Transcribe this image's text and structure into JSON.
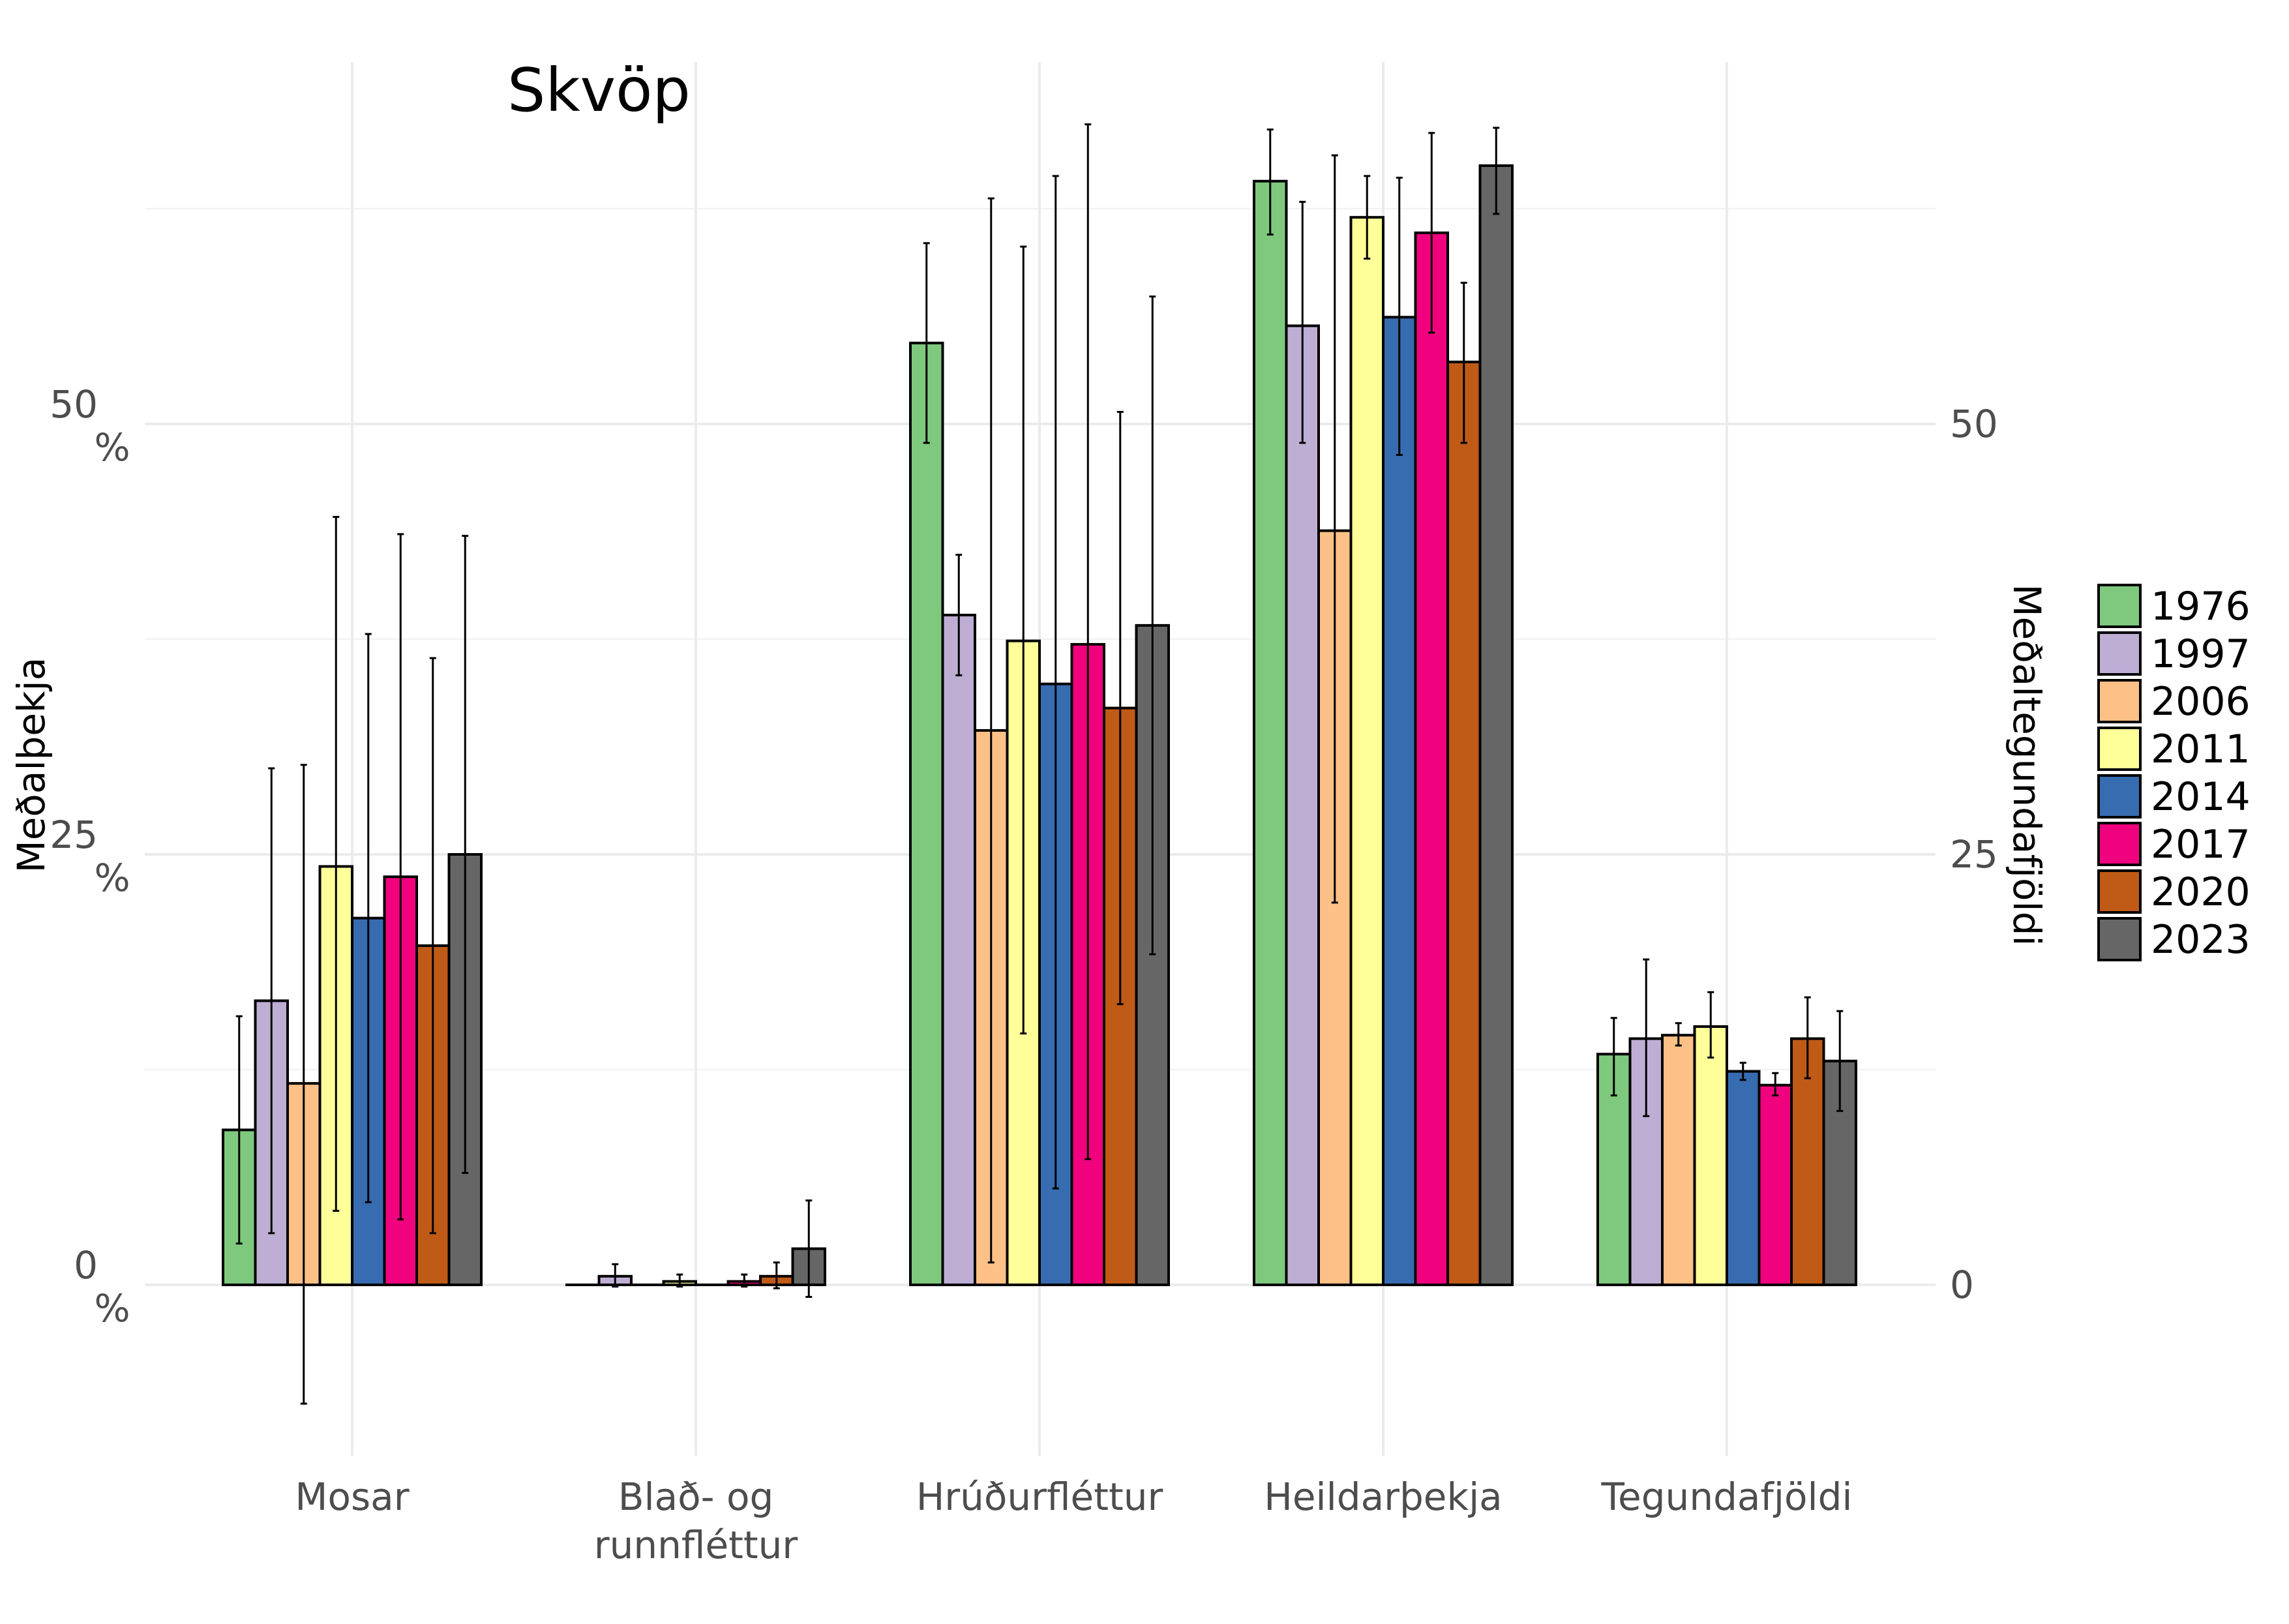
{
  "chart_data": {
    "type": "bar",
    "title": "Skvöp",
    "ylabel": "Meðalþekja",
    "ylabel_right": "Meðaltegundafjöldi",
    "categories": [
      "Mosar",
      "Blað- og runnfléttur",
      "Hrúðurfléttur",
      "Heildarþekja",
      "Tegundafjöldi"
    ],
    "category_lines": [
      [
        "Mosar"
      ],
      [
        "Blað- og",
        "runnfléttur"
      ],
      [
        "Hrúðurfléttur"
      ],
      [
        "Heildarþekja"
      ],
      [
        "Tegundafjöldi"
      ]
    ],
    "ylim": [
      -9.5,
      71
    ],
    "y_ticks_left": [
      {
        "value": 0,
        "line1": "0",
        "line2": "%"
      },
      {
        "value": 25,
        "line1": "25",
        "line2": "%"
      },
      {
        "value": 50,
        "line1": "50",
        "line2": "%"
      }
    ],
    "y_ticks_right": [
      {
        "value": 0,
        "label": "0"
      },
      {
        "value": 25,
        "label": "25"
      },
      {
        "value": 50,
        "label": "50"
      }
    ],
    "grid": true,
    "legend": "right",
    "series": [
      {
        "name": "1976",
        "color": "#7FC97F",
        "values": [
          9.0,
          0.0,
          54.7,
          64.1,
          13.4
        ],
        "errors": [
          [
            2.4,
            15.6
          ],
          [
            0.0,
            0.0
          ],
          [
            48.9,
            60.5
          ],
          [
            61.0,
            67.1
          ],
          [
            11.0,
            15.5
          ]
        ]
      },
      {
        "name": "1997",
        "color": "#BEAED4",
        "values": [
          16.5,
          0.5,
          38.9,
          55.7,
          14.3
        ],
        "errors": [
          [
            3.0,
            30.0
          ],
          [
            -0.1,
            1.2
          ],
          [
            35.4,
            42.4
          ],
          [
            48.9,
            62.9
          ],
          [
            9.8,
            18.9
          ]
        ]
      },
      {
        "name": "2006",
        "color": "#FDC086",
        "values": [
          11.7,
          0.0,
          32.2,
          43.8,
          14.5
        ],
        "errors": [
          [
            -6.9,
            30.2
          ],
          [
            0.0,
            0.0
          ],
          [
            1.3,
            63.1
          ],
          [
            22.2,
            65.6
          ],
          [
            13.9,
            15.2
          ]
        ]
      },
      {
        "name": "2011",
        "color": "#FFFF99",
        "values": [
          24.3,
          0.2,
          37.4,
          62.0,
          15.0
        ],
        "errors": [
          [
            4.3,
            44.6
          ],
          [
            -0.1,
            0.6
          ],
          [
            14.6,
            60.3
          ],
          [
            59.6,
            64.4
          ],
          [
            13.2,
            17.0
          ]
        ]
      },
      {
        "name": "2014",
        "color": "#386CB0",
        "values": [
          21.3,
          0.0,
          34.9,
          56.2,
          12.4
        ],
        "errors": [
          [
            4.8,
            37.8
          ],
          [
            0.0,
            0.0
          ],
          [
            5.6,
            64.4
          ],
          [
            48.2,
            64.3
          ],
          [
            11.9,
            12.9
          ]
        ]
      },
      {
        "name": "2017",
        "color": "#F0027F",
        "values": [
          23.7,
          0.2,
          37.2,
          61.1,
          11.6
        ],
        "errors": [
          [
            3.8,
            43.6
          ],
          [
            -0.1,
            0.6
          ],
          [
            7.3,
            67.4
          ],
          [
            55.3,
            66.9
          ],
          [
            11.0,
            12.3
          ]
        ]
      },
      {
        "name": "2020",
        "color": "#BF5B17",
        "values": [
          19.7,
          0.5,
          33.5,
          53.6,
          14.3
        ],
        "errors": [
          [
            3.0,
            36.4
          ],
          [
            -0.2,
            1.3
          ],
          [
            16.3,
            50.7
          ],
          [
            48.9,
            58.2
          ],
          [
            12.0,
            16.7
          ]
        ]
      },
      {
        "name": "2023",
        "color": "#666666",
        "values": [
          25.0,
          2.1,
          38.3,
          65.0,
          13.0
        ],
        "errors": [
          [
            6.5,
            43.5
          ],
          [
            -0.7,
            4.9
          ],
          [
            19.2,
            57.4
          ],
          [
            62.2,
            67.2
          ],
          [
            10.1,
            15.9
          ]
        ]
      }
    ]
  }
}
